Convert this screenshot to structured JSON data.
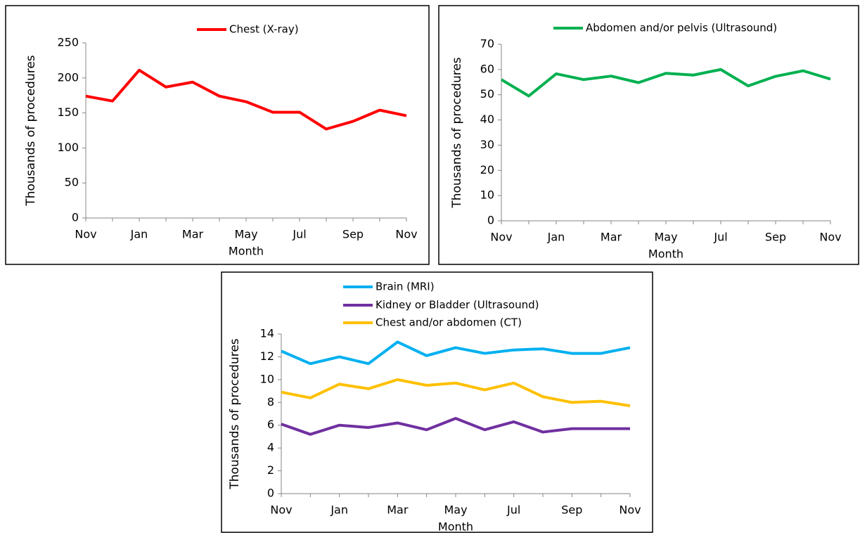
{
  "chart_data": [
    {
      "type": "line",
      "x_label": "Month",
      "y_label": "Thousands of procedures",
      "categories": [
        "Nov",
        null,
        "Jan",
        null,
        "Mar",
        null,
        "May",
        null,
        "Jul",
        null,
        "Sep",
        null,
        "Nov"
      ],
      "series": [
        {
          "name": "Chest (X-ray)",
          "color": "#ff0000",
          "values": [
            174,
            167,
            211,
            187,
            194,
            174,
            166,
            151,
            151,
            127,
            138,
            154,
            146
          ]
        }
      ],
      "ylim": [
        0,
        250
      ],
      "yticks": [
        0,
        50,
        100,
        150,
        200,
        250
      ]
    },
    {
      "type": "line",
      "x_label": "Month",
      "y_label": "Thousands of procedures",
      "categories": [
        "Nov",
        null,
        "Jan",
        null,
        "Mar",
        null,
        "May",
        null,
        "Jul",
        null,
        "Sep",
        null,
        "Nov"
      ],
      "series": [
        {
          "name": "Abdomen and/or pelvis (Ultrasound)",
          "color": "#00b050",
          "values": [
            56,
            49.5,
            58.3,
            56,
            57.4,
            54.8,
            58.5,
            57.8,
            60,
            53.5,
            57.3,
            59.5,
            56.2
          ]
        }
      ],
      "ylim": [
        0,
        70
      ],
      "yticks": [
        0,
        10,
        20,
        30,
        40,
        50,
        60,
        70
      ]
    },
    {
      "type": "line",
      "x_label": "Month",
      "y_label": "Thousands of procedures",
      "categories": [
        "Nov",
        null,
        "Jan",
        null,
        "Mar",
        null,
        "May",
        null,
        "Jul",
        null,
        "Sep",
        null,
        "Nov"
      ],
      "series": [
        {
          "name": "Brain (MRI)",
          "color": "#00b0f0",
          "values": [
            12.5,
            11.4,
            12,
            11.4,
            13.3,
            12.1,
            12.8,
            12.3,
            12.6,
            12.7,
            12.3,
            12.3,
            12.8
          ]
        },
        {
          "name": "Kidney or Bladder (Ultrasound)",
          "color": "#7030a0",
          "values": [
            6.1,
            5.2,
            6,
            5.8,
            6.2,
            5.6,
            6.6,
            5.6,
            6.3,
            5.4,
            5.7,
            5.7,
            5.7
          ]
        },
        {
          "name": "Chest and/or abdomen (CT)",
          "color": "#ffc000",
          "values": [
            8.9,
            8.4,
            9.6,
            9.2,
            10,
            9.5,
            9.7,
            9.1,
            9.7,
            8.5,
            8,
            8.1,
            7.7
          ]
        }
      ],
      "ylim": [
        0,
        14
      ],
      "yticks": [
        0,
        2,
        4,
        6,
        8,
        10,
        12,
        14
      ]
    }
  ]
}
